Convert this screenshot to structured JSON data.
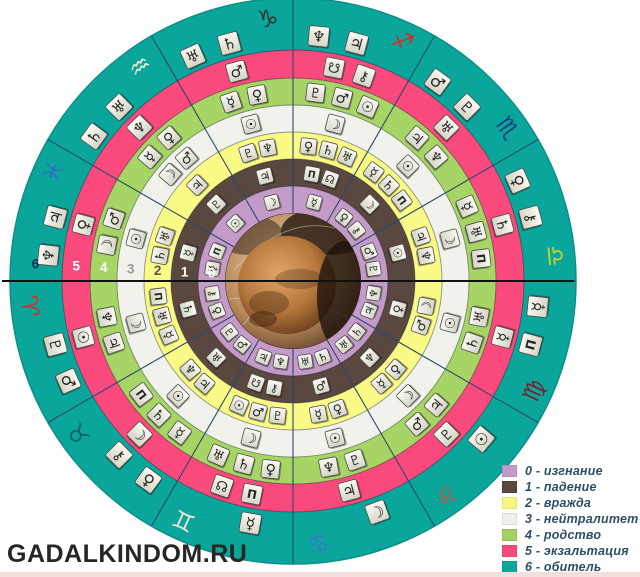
{
  "watermark": "GADALKINDOM.RU",
  "legend": {
    "items": [
      {
        "level": "0",
        "label": "0 - изгнание",
        "color": "#c49ac8"
      },
      {
        "level": "1",
        "label": "1 - падение",
        "color": "#594740"
      },
      {
        "level": "2",
        "label": "2 - вражда",
        "color": "#f7f780"
      },
      {
        "level": "3",
        "label": "3 - нейтралитет",
        "color": "#f0f0ea"
      },
      {
        "level": "4",
        "label": "4 - родство",
        "color": "#a2d163"
      },
      {
        "level": "5",
        "label": "5 - экзальтация",
        "color": "#fa4a7d"
      },
      {
        "level": "6",
        "label": "6 - обитель",
        "color": "#0ba69b"
      }
    ]
  },
  "wheel": {
    "rings": [
      {
        "level": 6,
        "name": "обитель",
        "color": "#0ba69b",
        "number_color": "#10314f"
      },
      {
        "level": 5,
        "name": "экзальтация",
        "color": "#fa4a7d",
        "number_color": "#ffffff"
      },
      {
        "level": 4,
        "name": "родство",
        "color": "#a6d465",
        "number_color": "#ffffff"
      },
      {
        "level": 3,
        "name": "нейтралитет",
        "color": "#f2f2ec",
        "number_color": "#9a9a9a"
      },
      {
        "level": 2,
        "name": "вражда",
        "color": "#fafa86",
        "number_color": "#55554a"
      },
      {
        "level": 1,
        "name": "падение",
        "color": "#594740",
        "number_color": "#ffffff"
      },
      {
        "level": 0,
        "name": "изгнание",
        "color": "#c49ac8",
        "number_color": "#ffffff"
      }
    ],
    "ring_numbers": [
      "6",
      "5",
      "4",
      "3",
      "2",
      "1",
      "0"
    ],
    "planets": {
      "sun": "☉",
      "moon": "☽",
      "mercury": "☿",
      "venus": "♀",
      "mars": "♂",
      "jupiter": "♃",
      "saturn": "♄",
      "uranus": "♅",
      "neptune": "♆",
      "pluto": "♇",
      "chiron": "⚷",
      "proserpina": "Π",
      "rahu": "☊",
      "ketu": "☋"
    },
    "zodiac": [
      {
        "name": "aries",
        "glyph": "♈",
        "color": "#d03028",
        "start": 150
      },
      {
        "name": "taurus",
        "glyph": "♉",
        "color": "#11636a",
        "start": 120
      },
      {
        "name": "gemini",
        "glyph": "♊",
        "color": "#efe9cf",
        "start": 90
      },
      {
        "name": "cancer",
        "glyph": "♋",
        "color": "#3a76d2",
        "start": 60
      },
      {
        "name": "leo",
        "glyph": "♌",
        "color": "#e2472a",
        "start": 30
      },
      {
        "name": "virgo",
        "glyph": "♍",
        "color": "#7c1f2d",
        "start": 0
      },
      {
        "name": "libra",
        "glyph": "♎",
        "color": "#c5d22b",
        "start": -30
      },
      {
        "name": "scorpio",
        "glyph": "♏",
        "color": "#1c3e7a",
        "start": -60
      },
      {
        "name": "sagittarius",
        "glyph": "♐",
        "color": "#d03028",
        "start": -90
      },
      {
        "name": "capricorn",
        "glyph": "♑",
        "color": "#32302e",
        "start": -120
      },
      {
        "name": "aquarius",
        "glyph": "♒",
        "color": "#efe9cf",
        "start": -150
      },
      {
        "name": "pisces",
        "glyph": "♓",
        "color": "#2f6fc5",
        "start": -180
      }
    ],
    "dignities": {
      "aries": {
        "6": [
          "mars",
          "pluto"
        ],
        "5": [
          "sun"
        ],
        "4": [
          "jupiter",
          "neptune"
        ],
        "3": [
          "moon"
        ],
        "2": [
          "mercury",
          "uranus",
          "proserpina"
        ],
        "1": [
          "saturn"
        ],
        "0": [
          "venus",
          "chiron"
        ]
      },
      "taurus": {
        "6": [
          "venus",
          "chiron"
        ],
        "5": [
          "moon"
        ],
        "4": [
          "mercury",
          "saturn",
          "proserpina"
        ],
        "3": [
          "sun"
        ],
        "2": [
          "jupiter",
          "neptune"
        ],
        "1": [
          "uranus"
        ],
        "0": [
          "mars",
          "pluto"
        ]
      },
      "gemini": {
        "6": [
          "mercury"
        ],
        "5": [
          "proserpina",
          "rahu"
        ],
        "4": [
          "venus",
          "saturn",
          "uranus"
        ],
        "3": [
          "moon"
        ],
        "2": [
          "pluto",
          "mars",
          "sun"
        ],
        "1": [
          "chiron",
          "ketu"
        ],
        "0": [
          "neptune",
          "jupiter"
        ]
      },
      "cancer": {
        "6": [
          "moon"
        ],
        "5": [
          "jupiter"
        ],
        "4": [
          "pluto",
          "neptune"
        ],
        "3": [
          "sun"
        ],
        "2": [
          "venus",
          "mercury"
        ],
        "1": [
          "mars"
        ],
        "0": [
          "saturn",
          "uranus"
        ]
      },
      "leo": {
        "6": [
          "sun"
        ],
        "5": [
          "pluto"
        ],
        "4": [
          "jupiter",
          "mars"
        ],
        "3": [
          "moon"
        ],
        "2": [
          "venus",
          "mercury"
        ],
        "1": [
          "neptune"
        ],
        "0": [
          "saturn",
          "uranus"
        ]
      },
      "virgo": {
        "6": [
          "mercury",
          "proserpina"
        ],
        "5": [
          "mercury"
        ],
        "4": [
          "uranus",
          "saturn"
        ],
        "3": [
          "sun"
        ],
        "2": [
          "moon",
          "mars"
        ],
        "1": [
          "venus"
        ],
        "0": [
          "neptune",
          "jupiter"
        ]
      },
      "libra": {
        "6": [
          "venus",
          "chiron"
        ],
        "5": [
          "saturn"
        ],
        "4": [
          "mercury",
          "uranus",
          "proserpina"
        ],
        "3": [
          "moon"
        ],
        "2": [
          "jupiter",
          "neptune"
        ],
        "1": [
          "sun"
        ],
        "0": [
          "mars",
          "pluto"
        ]
      },
      "scorpio": {
        "6": [
          "mars",
          "pluto"
        ],
        "5": [
          "uranus"
        ],
        "4": [
          "jupiter",
          "neptune"
        ],
        "3": [
          "sun"
        ],
        "2": [
          "mercury",
          "saturn",
          "proserpina"
        ],
        "1": [
          "moon"
        ],
        "0": [
          "venus",
          "chiron"
        ]
      },
      "sagittarius": {
        "6": [
          "neptune",
          "jupiter"
        ],
        "5": [
          "ketu",
          "chiron"
        ],
        "4": [
          "pluto",
          "mars",
          "sun"
        ],
        "3": [
          "moon"
        ],
        "2": [
          "venus",
          "saturn",
          "uranus"
        ],
        "1": [
          "proserpina",
          "rahu"
        ],
        "0": [
          "mercury"
        ]
      },
      "capricorn": {
        "6": [
          "uranus",
          "saturn"
        ],
        "5": [
          "mars"
        ],
        "4": [
          "mercury",
          "venus"
        ],
        "3": [
          "sun"
        ],
        "2": [
          "pluto",
          "neptune"
        ],
        "1": [
          "jupiter"
        ],
        "0": [
          "moon"
        ]
      },
      "aquarius": {
        "6": [
          "saturn",
          "uranus"
        ],
        "5": [
          "neptune"
        ],
        "4": [
          "mercury",
          "venus"
        ],
        "3": [
          "moon",
          "mars"
        ],
        "2": [
          "jupiter"
        ],
        "1": [
          "pluto"
        ],
        "0": [
          "sun"
        ]
      },
      "pisces": {
        "6": [
          "neptune",
          "jupiter"
        ],
        "5": [
          "venus"
        ],
        "4": [
          "moon",
          "mars"
        ],
        "3": [
          "sun"
        ],
        "2": [
          "saturn",
          "uranus"
        ],
        "1": [
          "mercury"
        ],
        "0": [
          "mercury",
          "proserpina"
        ]
      }
    },
    "center": {
      "type": "planet-photo",
      "palette": {
        "web_light": "#e6cda6",
        "web_mid": "#b98a5c",
        "rim_dark": "#4a3020",
        "sphere_light": "#e2a566",
        "sphere_mid": "#b5763b",
        "sphere_dark": "#5a3318",
        "shadow": "#1c120c"
      }
    },
    "line_colors": {
      "sector": "#2a4a6e",
      "horizontal": "#111111",
      "ring_edge": "#0d8f88"
    }
  }
}
